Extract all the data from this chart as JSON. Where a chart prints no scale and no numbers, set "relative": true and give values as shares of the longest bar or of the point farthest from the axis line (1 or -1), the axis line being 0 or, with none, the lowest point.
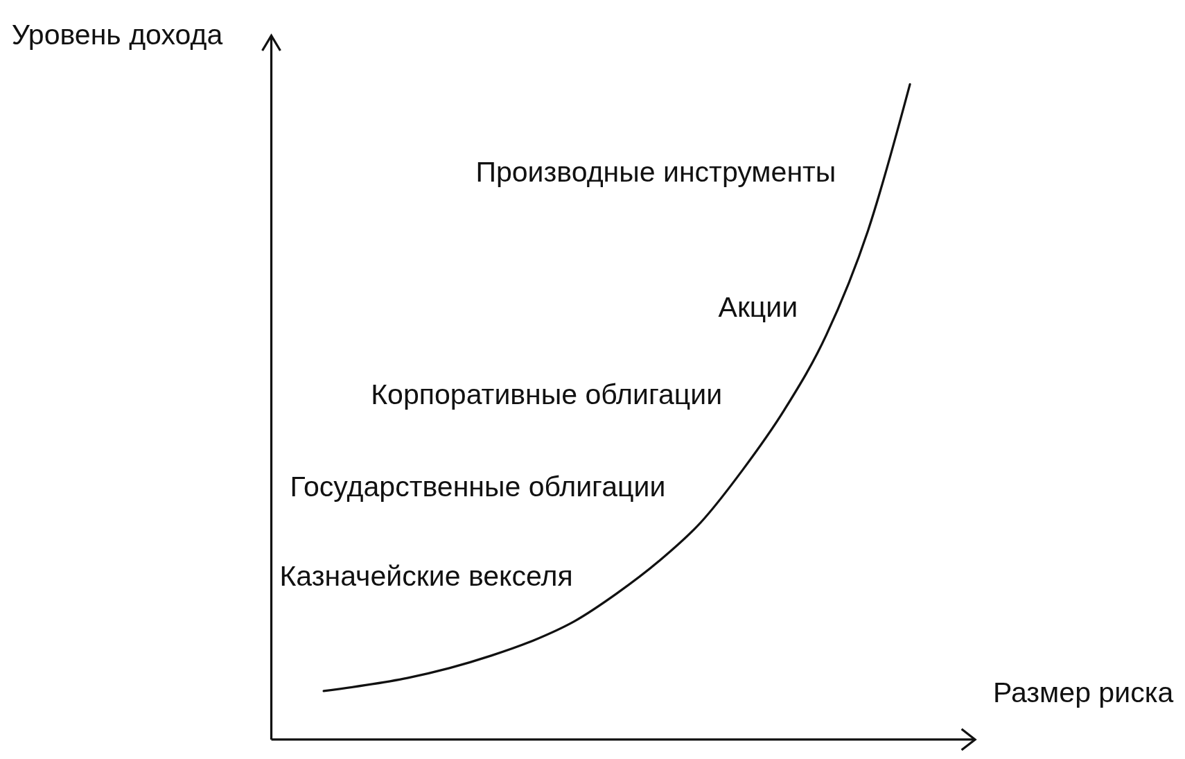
{
  "chart_data": {
    "type": "line",
    "relative": true,
    "xlabel": "Размер риска",
    "ylabel": "Уровень дохода",
    "categories": [
      null,
      null,
      null,
      null,
      null,
      null,
      null,
      null,
      null,
      null,
      null,
      null,
      null,
      null,
      null
    ],
    "values": [
      0.074,
      0.083,
      0.094,
      0.109,
      0.128,
      0.151,
      0.181,
      0.223,
      0.272,
      0.331,
      0.411,
      0.503,
      0.617,
      0.777,
      1.0
    ],
    "color": "#111111",
    "annotations": [
      "Производные инструменты",
      "Акции",
      "Корпоративные облигации",
      "Государственные облигации",
      "Казначейские векселя"
    ]
  }
}
